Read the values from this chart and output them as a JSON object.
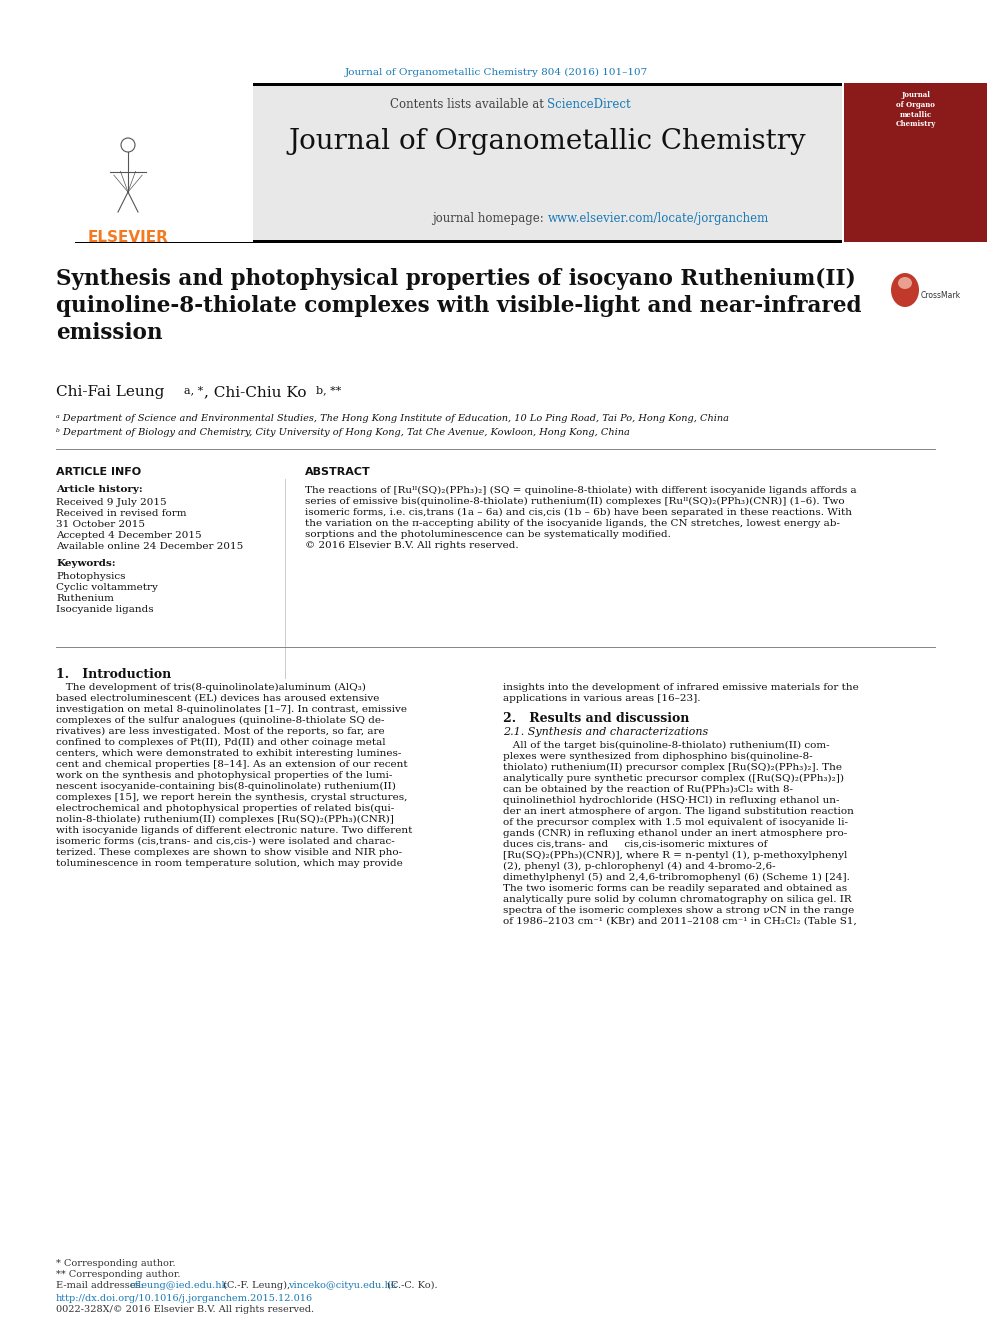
{
  "page_bg": "#ffffff",
  "header_journal_cite": "Journal of Organometallic Chemistry 804 (2016) 101–107",
  "header_cite_color": "#1a7ab5",
  "elsevier_color": "#f47920",
  "journal_title": "Journal of Organometallic Chemistry",
  "contents_text": "Contents lists available at ",
  "sciencedirect_text": "ScienceDirect",
  "sciencedirect_color": "#1a7ab5",
  "homepage_text": "journal homepage: ",
  "homepage_url": "www.elsevier.com/locate/jorganchem",
  "homepage_url_color": "#1a7ab5",
  "header_bg": "#e8e8e8",
  "article_title": "Synthesis and photophysical properties of isocyano Ruthenium(II)\nquinoline-8-thiolate complexes with visible-light and near-infrared\nemission",
  "affil_a": "ᵃ Department of Science and Environmental Studies, The Hong Kong Institute of Education, 10 Lo Ping Road, Tai Po, Hong Kong, China",
  "affil_b": "ᵇ Department of Biology and Chemistry, City University of Hong Kong, Tat Che Avenue, Kowloon, Hong Kong, China",
  "article_info_title": "ARTICLE INFO",
  "article_history_title": "Article history:",
  "received_text": "Received 9 July 2015",
  "received_revised1": "Received in revised form",
  "received_revised2": "31 October 2015",
  "accepted": "Accepted 4 December 2015",
  "available": "Available online 24 December 2015",
  "keywords_title": "Keywords:",
  "keywords": [
    "Photophysics",
    "Cyclic voltammetry",
    "Ruthenium",
    "Isocyanide ligands"
  ],
  "abstract_title": "ABSTRACT",
  "doi_text": "http://dx.doi.org/10.1016/j.jorganchem.2015.12.016",
  "doi_color": "#1a7ab5",
  "issn_text": "0022-328X/© 2016 Elsevier B.V. All rights reserved.",
  "footnote_star": "* Corresponding author.",
  "footnote_dstar": "** Corresponding author.",
  "footnote_email_color": "#1a7ab5",
  "text_color": "#111111",
  "line_color": "#aaaaaa"
}
